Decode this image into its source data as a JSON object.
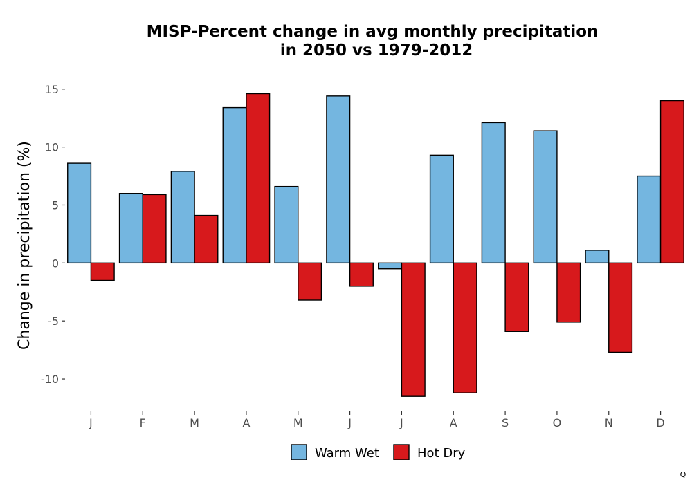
{
  "chart_data": {
    "type": "bar",
    "title_line1": "MISP-Percent change in avg monthly precipitation",
    "title_line2": "in 2050 vs 1979-2012",
    "xlabel": "",
    "ylabel": "Change in precipitation (%)",
    "categories": [
      "J",
      "F",
      "M",
      "A",
      "M",
      "J",
      "J",
      "A",
      "S",
      "O",
      "N",
      "D"
    ],
    "ylim": [
      -12.8,
      16
    ],
    "yticks": [
      15,
      10,
      5,
      0,
      -5,
      -10
    ],
    "ytick_labels": [
      "15",
      "10",
      "5",
      "0",
      "-5",
      "-10"
    ],
    "series": [
      {
        "name": "Warm Wet",
        "color": "#74b6e0",
        "values": [
          8.6,
          6.0,
          7.9,
          13.4,
          6.6,
          14.4,
          -0.5,
          9.3,
          12.1,
          11.4,
          1.1,
          7.5
        ]
      },
      {
        "name": "Hot Dry",
        "color": "#d7191c",
        "values": [
          -1.5,
          5.9,
          4.1,
          14.6,
          -3.2,
          -2.0,
          -11.5,
          -11.2,
          -5.9,
          -5.1,
          -7.7,
          14.0
        ]
      }
    ],
    "grid": true,
    "legend_position": "bottom",
    "background": "#ebebeb",
    "gridline_color": "#ffffff"
  },
  "corner_mark": "Q"
}
